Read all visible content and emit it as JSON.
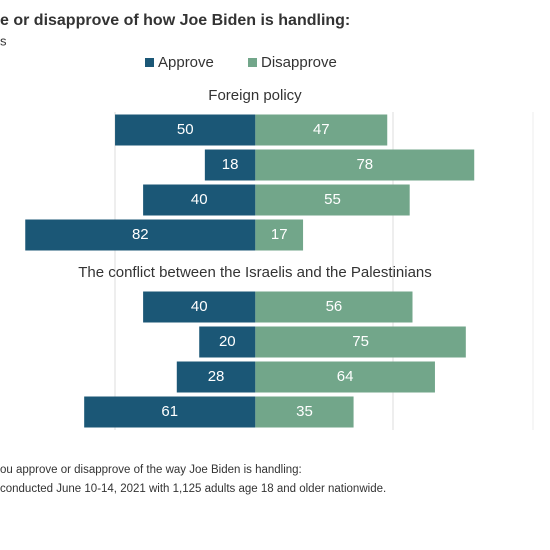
{
  "chart_data": [
    {
      "type": "diverging-bar",
      "title": "e or disapprove of how Joe Biden is handling:",
      "subtitle": "s",
      "panel_title": "Foreign policy",
      "categories": [
        null,
        null,
        null,
        null
      ],
      "series": [
        {
          "name": "Approve",
          "color": "#1b5776",
          "values": [
            50,
            18,
            40,
            82
          ]
        },
        {
          "name": "Disapprove",
          "color": "#72a68a",
          "values": [
            47,
            78,
            55,
            17
          ]
        }
      ],
      "xlim": [
        -91,
        105
      ]
    },
    {
      "type": "diverging-bar",
      "panel_title": "The conflict between the Israelis and the Palestinians",
      "categories": [
        null,
        null,
        null,
        null
      ],
      "series": [
        {
          "name": "Approve",
          "color": "#1b5776",
          "values": [
            40,
            20,
            28,
            61
          ]
        },
        {
          "name": "Disapprove",
          "color": "#72a68a",
          "values": [
            56,
            75,
            64,
            35
          ]
        }
      ],
      "xlim": [
        -91,
        105
      ]
    }
  ],
  "notes": [
    "ou approve or disapprove of the way Joe Biden is handling:",
    "conducted June 10-14, 2021 with 1,125 adults age 18 and older nationwide."
  ]
}
